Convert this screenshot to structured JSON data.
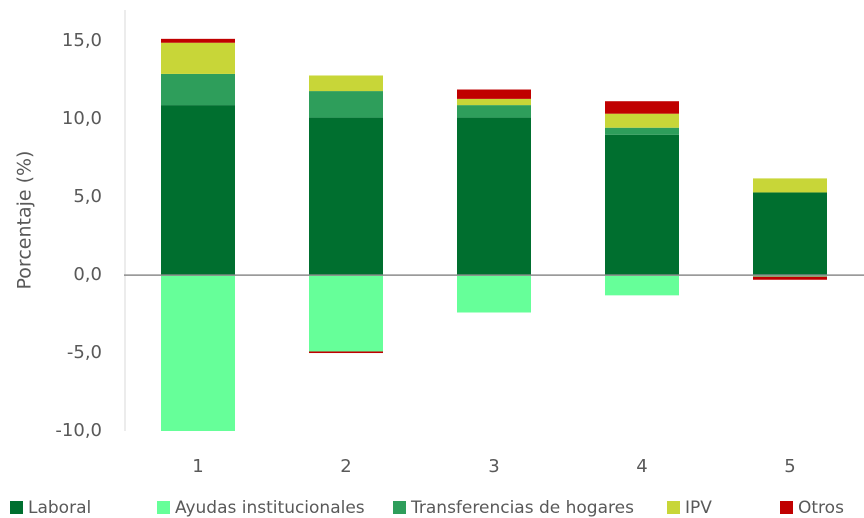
{
  "chart_data": {
    "type": "stacked_bar",
    "ylabel": "Porcentaje (%)",
    "categories": [
      "1",
      "2",
      "3",
      "4",
      "5"
    ],
    "series": [
      {
        "name": "Laboral",
        "color": "#006f2f",
        "values": [
          10.9,
          10.1,
          10.1,
          9.0,
          5.3
        ]
      },
      {
        "name": "Ayudas institucionales",
        "color": "#66ff99",
        "values": [
          -10.0,
          -4.9,
          -2.4,
          -1.3,
          -0.1
        ]
      },
      {
        "name": "Transferencias de hogares",
        "color": "#2e9e5b",
        "values": [
          2.0,
          1.7,
          0.8,
          0.45,
          0
        ]
      },
      {
        "name": "IPV",
        "color": "#c8d638",
        "values": [
          2.0,
          1.0,
          0.4,
          0.9,
          0.9
        ]
      },
      {
        "name": "Otros",
        "color": "#c00000",
        "values": [
          0.25,
          -0.1,
          0.6,
          0.8,
          -0.2
        ]
      }
    ],
    "ylim": [
      -10,
      17
    ],
    "yticks": [
      {
        "value": -10,
        "label": "-10,0"
      },
      {
        "value": -5,
        "label": "-5,0"
      },
      {
        "value": 0,
        "label": "0,0"
      },
      {
        "value": 5,
        "label": "5,0"
      },
      {
        "value": 10,
        "label": "10,0"
      },
      {
        "value": 15,
        "label": "15,0"
      }
    ],
    "grid": false,
    "legend": "bottom"
  }
}
